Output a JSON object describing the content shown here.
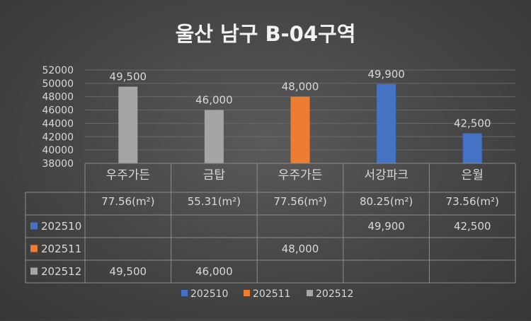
{
  "chart_data": {
    "type": "bar",
    "title": "울산 남구 B-04구역",
    "categories": [
      "우주가든",
      "금탑",
      "우주가든",
      "서강파크",
      "은월"
    ],
    "sub_labels": [
      "77.56(m²)",
      "55.31(m²)",
      "77.56(m²)",
      "80.25(m²)",
      "73.56(m²)"
    ],
    "series": [
      {
        "name": "202510",
        "color": "#4472C4",
        "values": [
          null,
          null,
          null,
          49900,
          42500
        ],
        "labels": [
          "",
          "",
          "",
          "49,900",
          "42,500"
        ]
      },
      {
        "name": "202511",
        "color": "#ED7D31",
        "values": [
          null,
          null,
          48000,
          null,
          null
        ],
        "labels": [
          "",
          "",
          "48,000",
          "",
          ""
        ]
      },
      {
        "name": "202512",
        "color": "#A5A5A5",
        "values": [
          49500,
          46000,
          null,
          null,
          null
        ],
        "labels": [
          "49,500",
          "46,000",
          "",
          "",
          ""
        ]
      }
    ],
    "ylim": [
      38000,
      52000
    ],
    "yticks": [
      "38000",
      "40000",
      "42000",
      "44000",
      "46000",
      "48000",
      "50000",
      "52000"
    ],
    "legend_position": "bottom",
    "grid": true,
    "data_table": true
  }
}
